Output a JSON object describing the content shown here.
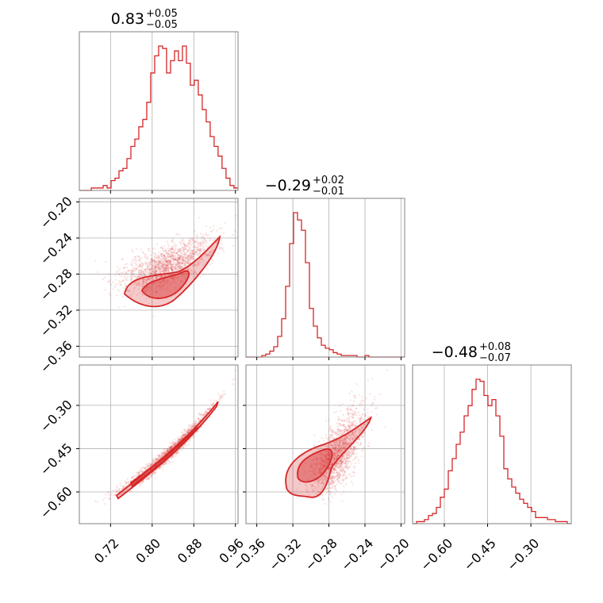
{
  "chart_data": {
    "type": "corner",
    "color": "#d62728",
    "params": [
      {
        "title_value": "0.83",
        "title_plus": "+0.05",
        "title_minus": "−0.05",
        "range": [
          0.66,
          0.965
        ],
        "ticks": [
          0.72,
          0.8,
          0.88,
          0.96
        ],
        "tick_labels": [
          "0.72",
          "0.80",
          "0.88",
          "0.96"
        ]
      },
      {
        "title_value": "−0.29",
        "title_plus": "+0.02",
        "title_minus": "−0.01",
        "range": [
          -0.372,
          -0.196
        ],
        "ticks": [
          -0.36,
          -0.32,
          -0.28,
          -0.24,
          -0.2
        ],
        "tick_labels": [
          "−0.36",
          "−0.32",
          "−0.28",
          "−0.24",
          "−0.20"
        ]
      },
      {
        "title_value": "−0.48",
        "title_plus": "+0.08",
        "title_minus": "−0.07",
        "range": [
          -0.71,
          -0.16
        ],
        "ticks": [
          -0.6,
          -0.45,
          -0.3
        ],
        "tick_labels": [
          "−0.60",
          "−0.45",
          "−0.30"
        ]
      }
    ],
    "histograms": [
      {
        "param": 0,
        "bin_start": 0.66,
        "bin_width": 0.00762,
        "counts": [
          0,
          0,
          0,
          1,
          1,
          1,
          2,
          1,
          4,
          5,
          8,
          9,
          13,
          18,
          21,
          26,
          29,
          36,
          48,
          55,
          59,
          58,
          48,
          53,
          57,
          53,
          59,
          52,
          43,
          45,
          39,
          33,
          28,
          22,
          18,
          14,
          9,
          5,
          2,
          1
        ]
      },
      {
        "param": 1,
        "bin_start": -0.372,
        "bin_width": 0.0044,
        "counts": [
          0,
          0,
          0,
          0,
          1,
          2,
          4,
          7,
          14,
          26,
          48,
          77,
          98,
          93,
          86,
          64,
          33,
          21,
          13,
          8,
          6,
          5,
          3,
          2,
          1,
          1,
          1,
          1,
          0,
          0,
          1,
          0,
          0,
          0,
          0,
          0,
          0,
          0,
          0,
          0
        ]
      },
      {
        "param": 2,
        "bin_start": -0.71,
        "bin_width": 0.01375,
        "counts": [
          0,
          1,
          1,
          2,
          4,
          5,
          8,
          13,
          17,
          26,
          32,
          39,
          45,
          53,
          58,
          66,
          71,
          70,
          63,
          58,
          61,
          53,
          43,
          27,
          22,
          18,
          15,
          12,
          10,
          8,
          6,
          3,
          3,
          3,
          2,
          2,
          1,
          1,
          1,
          0
        ]
      }
    ],
    "pairs": [
      {
        "x": 0,
        "y": 1,
        "trend": "curved-increasing",
        "center": [
          0.82,
          -0.295
        ]
      },
      {
        "x": 0,
        "y": 2,
        "trend": "linear-increasing",
        "center": [
          0.82,
          -0.48
        ]
      },
      {
        "x": 1,
        "y": 2,
        "trend": "linear-increasing",
        "center": [
          -0.295,
          -0.48
        ]
      }
    ],
    "grid": true
  }
}
